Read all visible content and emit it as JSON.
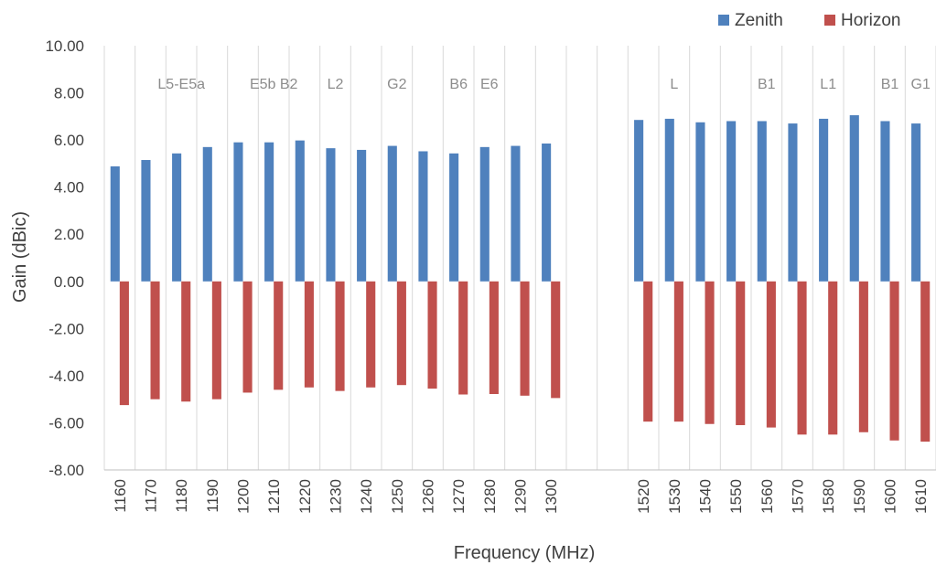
{
  "chart_data": {
    "type": "bar",
    "categories": [
      "1160",
      "1170",
      "1180",
      "1190",
      "1200",
      "1210",
      "1220",
      "1230",
      "1240",
      "1250",
      "1260",
      "1270",
      "1280",
      "1290",
      "1300",
      "",
      "",
      "1520",
      "1530",
      "1540",
      "1550",
      "1560",
      "1570",
      "1580",
      "1590",
      "1600",
      "1610"
    ],
    "series": [
      {
        "name": "Zenith",
        "color": "#4f81bd",
        "values": [
          4.88,
          5.15,
          5.43,
          5.7,
          5.9,
          5.9,
          5.98,
          5.65,
          5.58,
          5.75,
          5.52,
          5.43,
          5.7,
          5.75,
          5.85,
          null,
          null,
          6.85,
          6.9,
          6.75,
          6.8,
          6.8,
          6.7,
          6.9,
          7.05,
          6.8,
          6.7
        ]
      },
      {
        "name": "Horizon",
        "color": "#c0504d",
        "values": [
          -5.25,
          -5.0,
          -5.1,
          -5.0,
          -4.72,
          -4.6,
          -4.5,
          -4.65,
          -4.5,
          -4.4,
          -4.55,
          -4.8,
          -4.78,
          -4.85,
          -4.95,
          null,
          null,
          -5.95,
          -5.95,
          -6.05,
          -6.1,
          -6.2,
          -6.5,
          -6.5,
          -6.4,
          -6.75,
          -6.8
        ]
      }
    ],
    "band_labels": [
      {
        "text": "L5-E5a",
        "category_index": 2
      },
      {
        "text": "E5b B2",
        "category_index": 5
      },
      {
        "text": "L2",
        "category_index": 7
      },
      {
        "text": "G2",
        "category_index": 9
      },
      {
        "text": "B6",
        "category_index": 11
      },
      {
        "text": "E6",
        "category_index": 12
      },
      {
        "text": "L",
        "category_index": 18
      },
      {
        "text": "B1",
        "category_index": 21
      },
      {
        "text": "L1",
        "category_index": 23
      },
      {
        "text": "B1",
        "category_index": 25
      },
      {
        "text": "G1",
        "category_index": 26
      }
    ],
    "xlabel": "Frequency (MHz)",
    "ylabel": "Gain (dBic)",
    "ylim": [
      -8,
      10
    ],
    "yticks": [
      "10.00",
      "8.00",
      "6.00",
      "4.00",
      "2.00",
      "0.00",
      "-2.00",
      "-4.00",
      "-6.00",
      "-8.00"
    ],
    "grid": "vertical category lines",
    "legend": "top-right"
  }
}
